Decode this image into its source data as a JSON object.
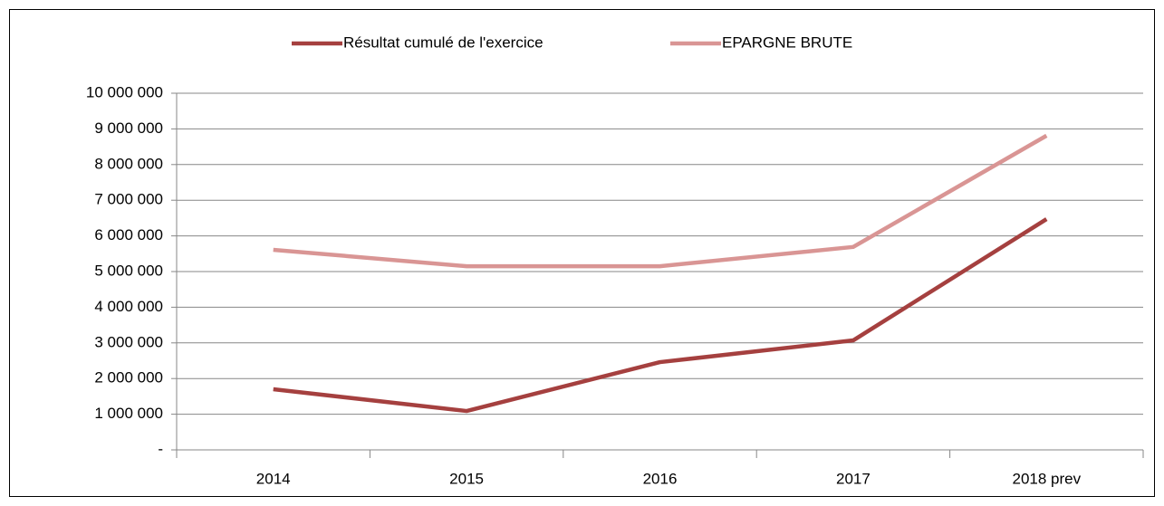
{
  "chart_data": {
    "type": "line",
    "categories": [
      "2014",
      "2015",
      "2016",
      "2017",
      "2018 prev"
    ],
    "series": [
      {
        "name": "Résultat cumulé de l'exercice",
        "color": "#a5403f",
        "values": [
          1700000,
          1090000,
          2460000,
          3070000,
          6470000
        ]
      },
      {
        "name": "EPARGNE BRUTE",
        "color": "#d99594",
        "values": [
          5610000,
          5150000,
          5150000,
          5690000,
          8810000
        ]
      }
    ],
    "ylim": [
      0,
      10000000
    ],
    "yticks": [
      {
        "value": 0,
        "label": "-"
      },
      {
        "value": 1000000,
        "label": "1 000 000"
      },
      {
        "value": 2000000,
        "label": "2 000 000"
      },
      {
        "value": 3000000,
        "label": "3 000 000"
      },
      {
        "value": 4000000,
        "label": "4 000 000"
      },
      {
        "value": 5000000,
        "label": "5 000 000"
      },
      {
        "value": 6000000,
        "label": "6 000 000"
      },
      {
        "value": 7000000,
        "label": "7 000 000"
      },
      {
        "value": 8000000,
        "label": "8 000 000"
      },
      {
        "value": 9000000,
        "label": "9 000 000"
      },
      {
        "value": 10000000,
        "label": "10 000 000"
      }
    ],
    "grid": true,
    "legend": "top"
  }
}
